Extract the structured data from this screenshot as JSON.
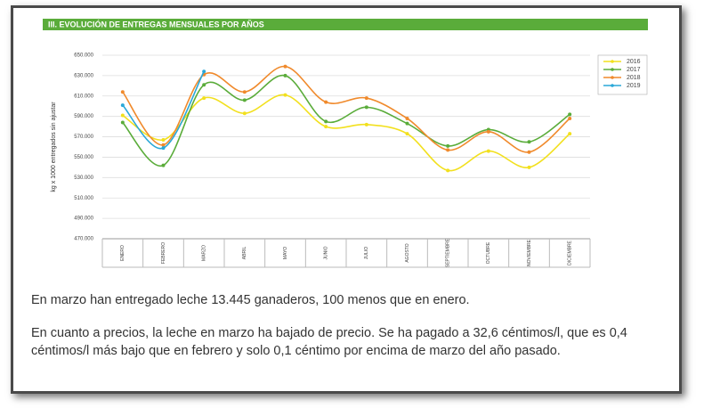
{
  "chart_data": {
    "type": "line",
    "title": "III. EVOLUCIÓN DE ENTREGAS MENSUALES POR AÑOS",
    "y_label": "kg x 1000 entregados sin ajustar",
    "categories": [
      "ENERO",
      "FEBRERO",
      "MARZO",
      "ABRIL",
      "MAYO",
      "JUNIO",
      "JULIO",
      "AGOSTO",
      "SEPTIEMBRE",
      "OCTUBRE",
      "NOVIEMBRE",
      "DICIEMBRE"
    ],
    "series": [
      {
        "name": "2016",
        "color": "#f2e01e",
        "values": [
          591000,
          567000,
          608000,
          593000,
          611000,
          580000,
          582000,
          573000,
          537000,
          556000,
          540000,
          573000
        ]
      },
      {
        "name": "2017",
        "color": "#5aac3a",
        "values": [
          584000,
          542000,
          621000,
          606000,
          630000,
          585000,
          599000,
          583000,
          561000,
          577000,
          565000,
          592000
        ]
      },
      {
        "name": "2018",
        "color": "#f08a2c",
        "values": [
          614000,
          562000,
          631000,
          614000,
          639000,
          604000,
          608000,
          588000,
          557000,
          575000,
          555000,
          588000
        ]
      },
      {
        "name": "2019",
        "color": "#2aa8d8",
        "values": [
          601000,
          559000,
          634000,
          null,
          null,
          null,
          null,
          null,
          null,
          null,
          null,
          null
        ]
      }
    ],
    "ylim": [
      470000,
      650000
    ],
    "yticks": [
      {
        "value": 470000,
        "label": "470.000"
      },
      {
        "value": 490000,
        "label": "490.000"
      },
      {
        "value": 510000,
        "label": "510.000"
      },
      {
        "value": 530000,
        "label": "530.000"
      },
      {
        "value": 550000,
        "label": "550.000"
      },
      {
        "value": 570000,
        "label": "570.000"
      },
      {
        "value": 590000,
        "label": "590.000"
      },
      {
        "value": 610000,
        "label": "610.000"
      },
      {
        "value": 630000,
        "label": "630.000"
      },
      {
        "value": 650000,
        "label": "650.000"
      }
    ],
    "grid": true,
    "legend": "upper right"
  },
  "paragraphs": [
    "En marzo han entregado leche 13.445 ganaderos, 100 menos que en enero.",
    "En cuanto a precios, la leche en marzo ha bajado de precio. Se ha pagado a 32,6 céntimos/l, que es 0,4 céntimos/l más bajo que en febrero y solo 0,1 céntimo por encima de marzo del año pasado."
  ]
}
